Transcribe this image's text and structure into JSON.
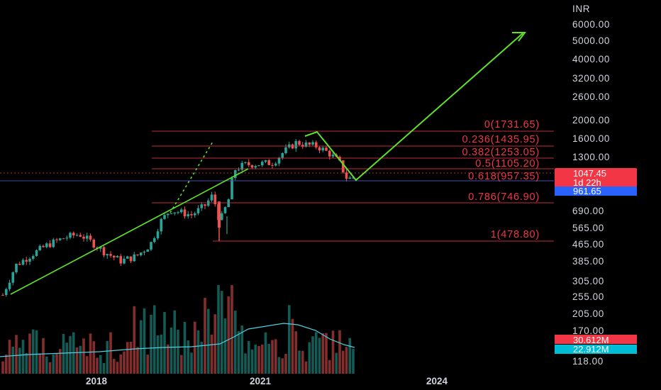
{
  "chart_data": {
    "type": "candlestick",
    "currency": "INR",
    "price_scale": "log",
    "price_ticks": [
      "6000.00",
      "5000.00",
      "4000.00",
      "3200.00",
      "2600.00",
      "2000.00",
      "1600.00",
      "1300.00",
      "960.00",
      "690.00",
      "565.00",
      "465.00",
      "385.00",
      "305.00",
      "255.00",
      "205.00",
      "170.00",
      "118.00"
    ],
    "time_ticks": [
      "2018",
      "2021",
      "2024"
    ],
    "fibonacci": [
      {
        "label": "0(1731.65)",
        "level": 1731.65
      },
      {
        "label": "0.236(1435.95)",
        "level": 1435.95
      },
      {
        "label": "0.382(1253.05)",
        "level": 1253.05
      },
      {
        "label": "0.5(1105.20)",
        "level": 1105.2
      },
      {
        "label": "0.618(957.35)",
        "level": 957.35
      },
      {
        "label": "0.786(746.90)",
        "level": 746.9
      },
      {
        "label": "1(478.80)",
        "level": 478.8
      }
    ],
    "fib_color": "#f23645",
    "up_color": "#26a69a",
    "down_color": "#ef5350",
    "trend_color": "#5ee22a",
    "last_price": {
      "value": "1047.45",
      "countdown": "1d 22h",
      "color": "#f23645"
    },
    "marked_price": {
      "value": "961.65",
      "color": "#2962ff"
    },
    "volume_badges": [
      {
        "value": "30.612M",
        "color": "#f23645"
      },
      {
        "value": "22.912M",
        "color": "#00bcd4"
      }
    ],
    "volume_ma_color": "#4dd0e1"
  }
}
